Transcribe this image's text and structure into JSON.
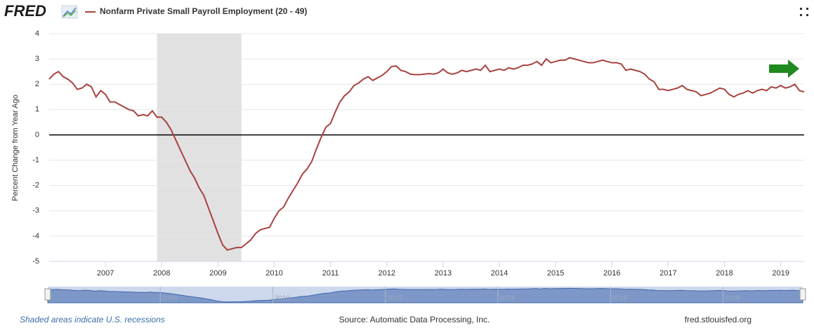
{
  "brand": "FRED",
  "chart_data": {
    "type": "line",
    "series": [
      {
        "name": "Nonfarm Private Small Payroll Employment (20 - 49)",
        "color": "#a8423f",
        "values": [
          2.2,
          2.4,
          2.5,
          2.3,
          2.2,
          2.05,
          1.8,
          1.85,
          2.0,
          1.9,
          1.5,
          1.75,
          1.6,
          1.3,
          1.3,
          1.2,
          1.1,
          1.0,
          0.95,
          0.75,
          0.8,
          0.75,
          0.95,
          0.7,
          0.7,
          0.5,
          0.2,
          -0.2,
          -0.6,
          -1.0,
          -1.4,
          -1.7,
          -2.1,
          -2.4,
          -2.9,
          -3.4,
          -3.9,
          -4.35,
          -4.55,
          -4.5,
          -4.45,
          -4.45,
          -4.3,
          -4.15,
          -3.9,
          -3.75,
          -3.7,
          -3.65,
          -3.3,
          -3.0,
          -2.85,
          -2.5,
          -2.2,
          -1.9,
          -1.55,
          -1.35,
          -1.05,
          -0.55,
          -0.1,
          0.3,
          0.45,
          0.9,
          1.3,
          1.55,
          1.7,
          1.95,
          2.05,
          2.2,
          2.3,
          2.15,
          2.25,
          2.35,
          2.5,
          2.7,
          2.72,
          2.55,
          2.5,
          2.4,
          2.38,
          2.38,
          2.4,
          2.42,
          2.4,
          2.45,
          2.6,
          2.45,
          2.4,
          2.45,
          2.55,
          2.5,
          2.55,
          2.6,
          2.55,
          2.75,
          2.5,
          2.55,
          2.6,
          2.55,
          2.65,
          2.6,
          2.65,
          2.75,
          2.75,
          2.8,
          2.9,
          2.75,
          3.0,
          2.85,
          2.9,
          2.95,
          2.95,
          3.05,
          3.0,
          2.95,
          2.9,
          2.85,
          2.85,
          2.9,
          2.95,
          2.9,
          2.85,
          2.85,
          2.8,
          2.55,
          2.6,
          2.55,
          2.5,
          2.4,
          2.2,
          2.1,
          1.8,
          1.8,
          1.75,
          1.8,
          1.85,
          1.95,
          1.8,
          1.75,
          1.7,
          1.55,
          1.6,
          1.65,
          1.75,
          1.85,
          1.8,
          1.6,
          1.5,
          1.6,
          1.65,
          1.75,
          1.65,
          1.75,
          1.8,
          1.75,
          1.9,
          1.85,
          1.95,
          1.85,
          1.9,
          2.0,
          1.75,
          1.7
        ]
      }
    ],
    "x": [
      2006.0,
      2006.083,
      2006.167,
      2006.25,
      2006.333,
      2006.417,
      2006.5,
      2006.583,
      2006.667,
      2006.75,
      2006.833,
      2006.917,
      2007.0,
      2007.083,
      2007.167,
      2007.25,
      2007.333,
      2007.417,
      2007.5,
      2007.583,
      2007.667,
      2007.75,
      2007.833,
      2007.917,
      2008.0,
      2008.083,
      2008.167,
      2008.25,
      2008.333,
      2008.417,
      2008.5,
      2008.583,
      2008.667,
      2008.75,
      2008.833,
      2008.917,
      2009.0,
      2009.083,
      2009.167,
      2009.25,
      2009.333,
      2009.417,
      2009.5,
      2009.583,
      2009.667,
      2009.75,
      2009.833,
      2009.917,
      2010.0,
      2010.083,
      2010.167,
      2010.25,
      2010.333,
      2010.417,
      2010.5,
      2010.583,
      2010.667,
      2010.75,
      2010.833,
      2010.917,
      2011.0,
      2011.083,
      2011.167,
      2011.25,
      2011.333,
      2011.417,
      2011.5,
      2011.583,
      2011.667,
      2011.75,
      2011.833,
      2011.917,
      2012.0,
      2012.083,
      2012.167,
      2012.25,
      2012.333,
      2012.417,
      2012.5,
      2012.583,
      2012.667,
      2012.75,
      2012.833,
      2012.917,
      2013.0,
      2013.083,
      2013.167,
      2013.25,
      2013.333,
      2013.417,
      2013.5,
      2013.583,
      2013.667,
      2013.75,
      2013.833,
      2013.917,
      2014.0,
      2014.083,
      2014.167,
      2014.25,
      2014.333,
      2014.417,
      2014.5,
      2014.583,
      2014.667,
      2014.75,
      2014.833,
      2014.917,
      2015.0,
      2015.083,
      2015.167,
      2015.25,
      2015.333,
      2015.417,
      2015.5,
      2015.583,
      2015.667,
      2015.75,
      2015.833,
      2015.917,
      2016.0,
      2016.083,
      2016.167,
      2016.25,
      2016.333,
      2016.417,
      2016.5,
      2016.583,
      2016.667,
      2016.75,
      2016.833,
      2016.917,
      2017.0,
      2017.083,
      2017.167,
      2017.25,
      2017.333,
      2017.417,
      2017.5,
      2017.583,
      2017.667,
      2017.75,
      2017.833,
      2017.917,
      2018.0,
      2018.083,
      2018.167,
      2018.25,
      2018.333,
      2018.417,
      2018.5,
      2018.583,
      2018.667,
      2018.75,
      2018.833,
      2018.917,
      2019.0,
      2019.083,
      2019.167,
      2019.25,
      2019.333,
      2019.417
    ],
    "xlim": [
      2006.0,
      2019.417
    ],
    "xticks": [
      2007,
      2008,
      2009,
      2010,
      2011,
      2012,
      2013,
      2014,
      2015,
      2016,
      2017,
      2018,
      2019
    ],
    "ylim": [
      -5,
      4
    ],
    "yticks": [
      -5,
      -4,
      -3,
      -2,
      -1,
      0,
      1,
      2,
      3,
      4
    ],
    "ylabel": "Percent Change from Year Ago",
    "grid": true,
    "zero_line": true,
    "recessions": [
      {
        "start": 2007.917,
        "end": 2009.417
      }
    ],
    "navigator_ticks": [
      2008,
      2010,
      2012,
      2014,
      2016,
      2018
    ]
  },
  "footer": {
    "note": "Shaded areas indicate U.S. recessions",
    "source": "Source: Automatic Data Processing, Inc.",
    "site": "fred.stlouisfed.org"
  }
}
